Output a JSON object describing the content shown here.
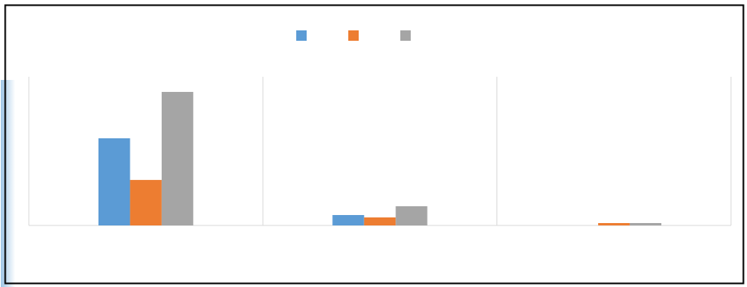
{
  "chart_data": {
    "type": "bar",
    "categories": [
      null,
      null,
      null
    ],
    "series": [
      {
        "color": "#5b9bd5",
        "values": [
          58.6,
          7,
          0
        ]
      },
      {
        "color": "#ed7d31",
        "values": [
          30.6,
          5.4,
          1.6
        ]
      },
      {
        "color": "#a5a5a5",
        "values": [
          89.8,
          12.9,
          1.6
        ]
      }
    ],
    "ylim": [
      0,
      100
    ]
  }
}
